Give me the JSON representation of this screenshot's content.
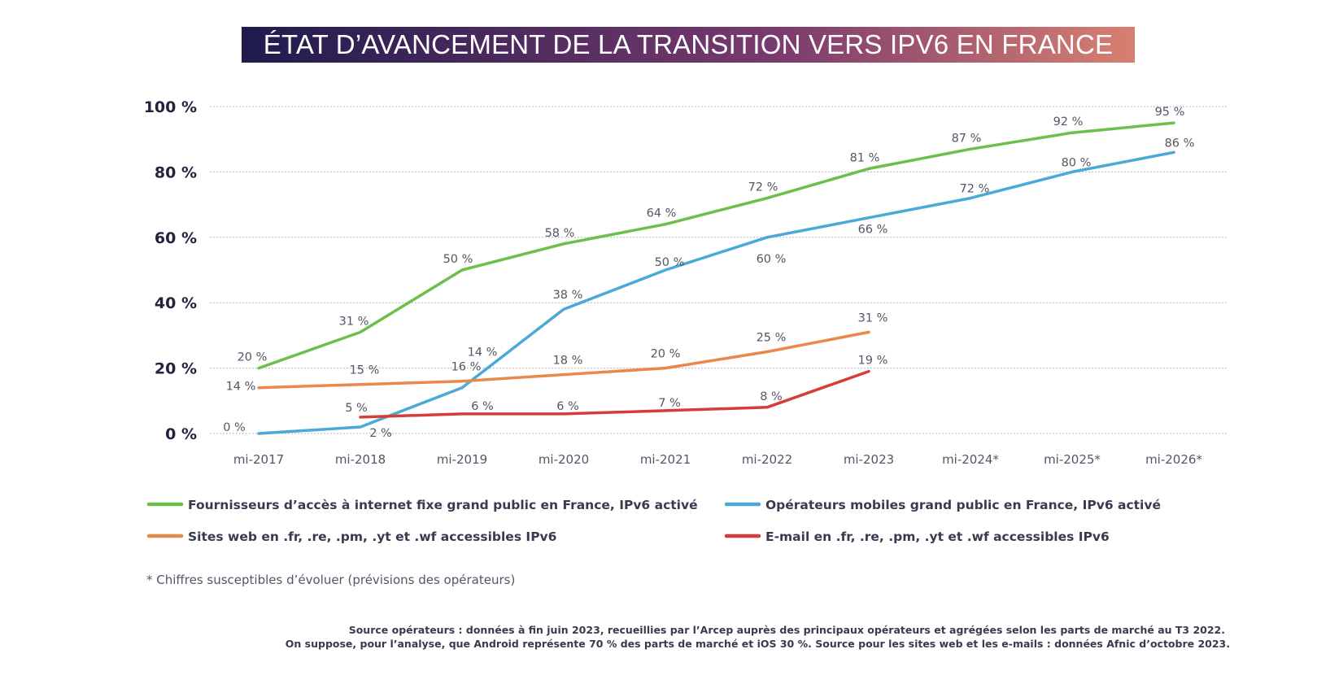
{
  "colors": {
    "fixed": "#6dbf4b",
    "mobile": "#4aa9d6",
    "web": "#e8884a",
    "email": "#d63d3a",
    "title_gradient_start": "#1f1b4d",
    "title_gradient_mid": "#7a3a6e",
    "title_gradient_end": "#d88070"
  },
  "chart_data": {
    "type": "line",
    "title": "ÉTAT D’AVANCEMENT DE LA TRANSITION VERS IPV6 EN FRANCE",
    "categories": [
      "mi-2017",
      "mi-2018",
      "mi-2019",
      "mi-2020",
      "mi-2021",
      "mi-2022",
      "mi-2023",
      "mi-2024*",
      "mi-2025*",
      "mi-2026*"
    ],
    "ylim": [
      0,
      100
    ],
    "yticks": [
      0,
      20,
      40,
      60,
      80,
      100
    ],
    "ytick_labels": [
      "0 %",
      "20 %",
      "40 %",
      "60 %",
      "80 %",
      "100 %"
    ],
    "grid": true,
    "legend_position": "bottom",
    "series": [
      {
        "name": "Fournisseurs d’accès à internet fixe grand public en France, IPv6 activé",
        "color_key": "fixed",
        "values": [
          20,
          31,
          50,
          58,
          64,
          72,
          81,
          87,
          92,
          95
        ],
        "labels": [
          "20 %",
          "31 %",
          "50 %",
          "58 %",
          "64 %",
          "72 %",
          "81 %",
          "87 %",
          "92 %",
          "95 %"
        ]
      },
      {
        "name": "Opérateurs mobiles grand public en France, IPv6 activé",
        "color_key": "mobile",
        "values": [
          0,
          2,
          14,
          38,
          50,
          60,
          66,
          72,
          80,
          86
        ],
        "labels": [
          "0 %",
          "2 %",
          "14 %",
          "38 %",
          "50 %",
          "60 %",
          "66 %",
          "72 %",
          "80 %",
          "86 %"
        ]
      },
      {
        "name": "Sites web en .fr, .re, .pm, .yt et .wf accessibles IPv6",
        "color_key": "web",
        "values": [
          14,
          15,
          16,
          18,
          20,
          25,
          31,
          null,
          null,
          null
        ],
        "labels": [
          "14 %",
          "15 %",
          "16 %",
          "18 %",
          "20 %",
          "25 %",
          "31 %",
          null,
          null,
          null
        ]
      },
      {
        "name": "E-mail en .fr, .re, .pm, .yt et .wf accessibles IPv6",
        "color_key": "email",
        "values": [
          null,
          5,
          6,
          6,
          7,
          8,
          19,
          null,
          null,
          null
        ],
        "labels": [
          null,
          "5 %",
          "6 %",
          "6 %",
          "7 %",
          "8 %",
          "19 %",
          null,
          null,
          null
        ]
      }
    ]
  },
  "footnote": "* Chiffres susceptibles d’évoluer (prévisions des opérateurs)",
  "source_lines": [
    "Source opérateurs : données à fin juin 2023, recueillies par l’Arcep auprès des principaux opérateurs et agrégées selon les parts de marché au T3 2022.",
    "On suppose, pour l’analyse, que Android représente 70 % des parts de marché et iOS 30 %. Source pour les sites web et les e-mails : données Afnic d’octobre 2023."
  ]
}
